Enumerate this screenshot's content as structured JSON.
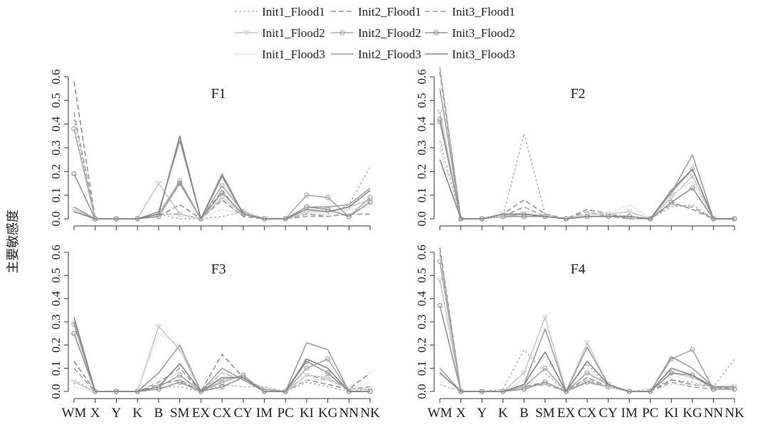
{
  "figure": {
    "ylabel": "主要敏感度"
  },
  "legend": {
    "entries": [
      {
        "name": "Init1_Flood1",
        "color": "#b5b5b5",
        "dash": "3,3",
        "marker": "none"
      },
      {
        "name": "Init2_Flood1",
        "color": "#8f8f8f",
        "dash": "7,4",
        "marker": "none"
      },
      {
        "name": "Init3_Flood1",
        "color": "#a0a0a0",
        "dash": "7,4",
        "marker": "none"
      },
      {
        "name": "Init1_Flood2",
        "color": "#c8c8c8",
        "dash": "",
        "marker": "triangle"
      },
      {
        "name": "Init2_Flood2",
        "color": "#a8a8a8",
        "dash": "",
        "marker": "circle"
      },
      {
        "name": "Init3_Flood2",
        "color": "#959595",
        "dash": "",
        "marker": "circle"
      },
      {
        "name": "Init1_Flood3",
        "color": "#d6d6d6",
        "dash": "2,2",
        "marker": "none"
      },
      {
        "name": "Init2_Flood3",
        "color": "#9e9e9e",
        "dash": "",
        "marker": "none"
      },
      {
        "name": "Init3_Flood3",
        "color": "#858585",
        "dash": "",
        "marker": "none"
      }
    ]
  },
  "chart_data": [
    {
      "type": "line",
      "title": "F1",
      "categories": [
        "WM",
        "X",
        "Y",
        "K",
        "B",
        "SM",
        "EX",
        "CX",
        "CY",
        "IM",
        "PC",
        "KI",
        "KG",
        "NN",
        "NK"
      ],
      "yticks": [
        "0.0",
        "0.1",
        "0.2",
        "0.3",
        "0.4",
        "0.5",
        "0.6"
      ],
      "ylim": [
        0,
        0.6
      ],
      "series": [
        {
          "name": "Init1_Flood1",
          "values": [
            0.42,
            0.0,
            0.0,
            0.0,
            0.02,
            0.0,
            0.0,
            0.01,
            0.03,
            0.0,
            0.0,
            0.02,
            0.02,
            0.06,
            0.22
          ]
        },
        {
          "name": "Init2_Flood1",
          "values": [
            0.58,
            0.0,
            0.0,
            0.0,
            0.01,
            0.06,
            0.0,
            0.08,
            0.01,
            0.0,
            0.0,
            0.02,
            0.01,
            0.02,
            0.02
          ]
        },
        {
          "name": "Init3_Flood1",
          "values": [
            0.45,
            0.0,
            0.0,
            0.0,
            0.02,
            0.02,
            0.0,
            0.12,
            0.01,
            0.0,
            0.0,
            0.01,
            0.01,
            0.02,
            0.02
          ]
        },
        {
          "name": "Init1_Flood2",
          "values": [
            0.04,
            0.0,
            0.0,
            0.0,
            0.15,
            0.02,
            0.0,
            0.09,
            0.02,
            0.0,
            0.0,
            0.03,
            0.03,
            0.05,
            0.08
          ]
        },
        {
          "name": "Init2_Flood2",
          "values": [
            0.38,
            0.0,
            0.0,
            0.0,
            0.02,
            0.16,
            0.0,
            0.14,
            0.03,
            0.0,
            0.0,
            0.1,
            0.09,
            0.01,
            0.09
          ]
        },
        {
          "name": "Init3_Flood2",
          "values": [
            0.19,
            0.0,
            0.0,
            0.0,
            0.01,
            0.15,
            0.0,
            0.11,
            0.02,
            0.0,
            0.0,
            0.05,
            0.04,
            0.01,
            0.07
          ]
        },
        {
          "name": "Init1_Flood3",
          "values": [
            0.03,
            0.0,
            0.0,
            0.0,
            0.03,
            0.01,
            0.0,
            0.04,
            0.02,
            0.01,
            0.0,
            0.02,
            0.02,
            0.04,
            0.05
          ]
        },
        {
          "name": "Init2_Flood3",
          "values": [
            0.05,
            0.0,
            0.0,
            0.0,
            0.03,
            0.33,
            0.0,
            0.19,
            0.02,
            0.0,
            0.0,
            0.05,
            0.05,
            0.06,
            0.13
          ]
        },
        {
          "name": "Init3_Flood3",
          "values": [
            0.03,
            0.0,
            0.0,
            0.0,
            0.02,
            0.35,
            0.0,
            0.18,
            0.02,
            0.0,
            0.0,
            0.04,
            0.03,
            0.05,
            0.12
          ]
        }
      ]
    },
    {
      "type": "line",
      "title": "F2",
      "categories": [
        "WM",
        "X",
        "Y",
        "K",
        "B",
        "SM",
        "EX",
        "CX",
        "CY",
        "IM",
        "PC",
        "KI",
        "KG",
        "NN",
        "NK"
      ],
      "yticks": [
        "0.0",
        "0.1",
        "0.2",
        "0.3",
        "0.4",
        "0.5",
        "0.6"
      ],
      "ylim": [
        0,
        0.6
      ],
      "series": [
        {
          "name": "Init1_Flood1",
          "values": [
            0.33,
            0.0,
            0.0,
            0.01,
            0.36,
            0.02,
            0.0,
            0.02,
            0.02,
            0.01,
            0.0,
            0.05,
            0.06,
            0.0,
            0.0
          ]
        },
        {
          "name": "Init2_Flood1",
          "values": [
            0.62,
            0.0,
            0.0,
            0.02,
            0.08,
            0.02,
            0.0,
            0.04,
            0.02,
            0.0,
            0.0,
            0.07,
            0.04,
            0.0,
            0.0
          ]
        },
        {
          "name": "Init3_Flood1",
          "values": [
            0.64,
            0.0,
            0.0,
            0.01,
            0.05,
            0.01,
            0.0,
            0.03,
            0.01,
            0.0,
            0.0,
            0.06,
            0.05,
            0.0,
            0.0
          ]
        },
        {
          "name": "Init1_Flood2",
          "values": [
            0.45,
            0.0,
            0.0,
            0.02,
            0.02,
            0.01,
            0.0,
            0.02,
            0.02,
            0.03,
            0.0,
            0.09,
            0.18,
            0.0,
            0.0
          ]
        },
        {
          "name": "Init2_Flood2",
          "values": [
            0.41,
            0.0,
            0.0,
            0.01,
            0.02,
            0.01,
            0.0,
            0.01,
            0.01,
            0.01,
            0.0,
            0.11,
            0.21,
            0.0,
            0.0
          ]
        },
        {
          "name": "Init3_Flood2",
          "values": [
            0.42,
            0.0,
            0.0,
            0.01,
            0.01,
            0.01,
            0.0,
            0.01,
            0.01,
            0.01,
            0.0,
            0.07,
            0.13,
            0.0,
            0.0
          ]
        },
        {
          "name": "Init1_Flood3",
          "values": [
            0.3,
            0.0,
            0.0,
            0.01,
            0.03,
            0.01,
            0.0,
            0.02,
            0.02,
            0.06,
            0.0,
            0.1,
            0.16,
            0.0,
            0.0
          ]
        },
        {
          "name": "Init2_Flood3",
          "values": [
            0.55,
            0.0,
            0.0,
            0.02,
            0.02,
            0.01,
            0.0,
            0.01,
            0.01,
            0.01,
            0.0,
            0.11,
            0.27,
            0.0,
            0.0
          ]
        },
        {
          "name": "Init3_Flood3",
          "values": [
            0.25,
            0.0,
            0.0,
            0.02,
            0.02,
            0.01,
            0.0,
            0.01,
            0.01,
            0.01,
            0.0,
            0.12,
            0.21,
            0.0,
            0.0
          ]
        }
      ]
    },
    {
      "type": "line",
      "title": "F3",
      "categories": [
        "WM",
        "X",
        "Y",
        "K",
        "B",
        "SM",
        "EX",
        "CX",
        "CY",
        "IM",
        "PC",
        "KI",
        "KG",
        "NN",
        "NK"
      ],
      "yticks": [
        "0.0",
        "0.1",
        "0.2",
        "0.3",
        "0.4",
        "0.5",
        "0.6"
      ],
      "ylim": [
        0,
        0.6
      ],
      "series": [
        {
          "name": "Init1_Flood1",
          "values": [
            0.05,
            0.0,
            0.0,
            0.0,
            0.02,
            0.02,
            0.0,
            0.03,
            0.02,
            0.02,
            0.0,
            0.04,
            0.02,
            0.0,
            0.01
          ]
        },
        {
          "name": "Init2_Flood1",
          "values": [
            0.13,
            0.0,
            0.0,
            0.0,
            0.03,
            0.05,
            0.0,
            0.16,
            0.06,
            0.01,
            0.0,
            0.05,
            0.03,
            0.01,
            0.08
          ]
        },
        {
          "name": "Init3_Flood1",
          "values": [
            0.1,
            0.0,
            0.0,
            0.0,
            0.04,
            0.1,
            0.0,
            0.08,
            0.05,
            0.01,
            0.0,
            0.07,
            0.05,
            0.01,
            0.02
          ]
        },
        {
          "name": "Init1_Flood2",
          "values": [
            0.04,
            0.0,
            0.0,
            0.0,
            0.28,
            0.18,
            0.0,
            0.05,
            0.07,
            0.0,
            0.0,
            0.07,
            0.06,
            0.01,
            0.01
          ]
        },
        {
          "name": "Init2_Flood2",
          "values": [
            0.29,
            0.0,
            0.0,
            0.0,
            0.02,
            0.07,
            0.0,
            0.04,
            0.07,
            0.0,
            0.0,
            0.1,
            0.14,
            0.0,
            0.0
          ]
        },
        {
          "name": "Init3_Flood2",
          "values": [
            0.25,
            0.0,
            0.0,
            0.0,
            0.01,
            0.04,
            0.0,
            0.02,
            0.06,
            0.0,
            0.0,
            0.13,
            0.08,
            0.0,
            0.0
          ]
        },
        {
          "name": "Init1_Flood3",
          "values": [
            0.02,
            0.0,
            0.0,
            0.0,
            0.25,
            0.2,
            0.0,
            0.08,
            0.05,
            0.02,
            0.0,
            0.05,
            0.05,
            0.01,
            0.04
          ]
        },
        {
          "name": "Init2_Flood3",
          "values": [
            0.3,
            0.0,
            0.0,
            0.0,
            0.08,
            0.2,
            0.0,
            0.1,
            0.05,
            0.0,
            0.0,
            0.21,
            0.18,
            0.0,
            0.0
          ]
        },
        {
          "name": "Init3_Flood3",
          "values": [
            0.32,
            0.0,
            0.0,
            0.0,
            0.02,
            0.12,
            0.0,
            0.06,
            0.06,
            0.0,
            0.0,
            0.14,
            0.1,
            0.0,
            0.0
          ]
        }
      ]
    },
    {
      "type": "line",
      "title": "F4",
      "categories": [
        "WM",
        "X",
        "Y",
        "K",
        "B",
        "SM",
        "EX",
        "CX",
        "CY",
        "IM",
        "PC",
        "KI",
        "KG",
        "NN",
        "NK"
      ],
      "yticks": [
        "0.0",
        "0.1",
        "0.2",
        "0.3",
        "0.4",
        "0.5",
        "0.6"
      ],
      "ylim": [
        0,
        0.6
      ],
      "series": [
        {
          "name": "Init1_Flood1",
          "values": [
            0.03,
            0.0,
            0.0,
            0.01,
            0.18,
            0.08,
            0.0,
            0.12,
            0.02,
            0.0,
            0.01,
            0.05,
            0.04,
            0.02,
            0.14
          ]
        },
        {
          "name": "Init2_Flood1",
          "values": [
            0.62,
            0.0,
            0.0,
            0.0,
            0.02,
            0.04,
            0.0,
            0.06,
            0.02,
            0.0,
            0.0,
            0.05,
            0.03,
            0.02,
            0.01
          ]
        },
        {
          "name": "Init3_Flood1",
          "values": [
            0.6,
            0.0,
            0.0,
            0.0,
            0.02,
            0.03,
            0.0,
            0.05,
            0.02,
            0.0,
            0.0,
            0.04,
            0.02,
            0.01,
            0.01
          ]
        },
        {
          "name": "Init1_Flood2",
          "values": [
            0.48,
            0.0,
            0.0,
            0.0,
            0.08,
            0.32,
            0.0,
            0.21,
            0.03,
            0.0,
            0.0,
            0.08,
            0.06,
            0.02,
            0.02
          ]
        },
        {
          "name": "Init2_Flood2",
          "values": [
            0.56,
            0.0,
            0.0,
            0.0,
            0.02,
            0.1,
            0.0,
            0.08,
            0.03,
            0.0,
            0.0,
            0.14,
            0.18,
            0.01,
            0.01
          ]
        },
        {
          "name": "Init3_Flood2",
          "values": [
            0.37,
            0.0,
            0.0,
            0.0,
            0.01,
            0.04,
            0.0,
            0.04,
            0.02,
            0.0,
            0.0,
            0.08,
            0.07,
            0.01,
            0.01
          ]
        },
        {
          "name": "Init1_Flood3",
          "values": [
            0.03,
            0.0,
            0.0,
            0.0,
            0.05,
            0.15,
            0.0,
            0.05,
            0.02,
            0.0,
            0.0,
            0.03,
            0.03,
            0.02,
            0.03
          ]
        },
        {
          "name": "Init2_Flood3",
          "values": [
            0.1,
            0.0,
            0.0,
            0.0,
            0.03,
            0.27,
            0.0,
            0.19,
            0.03,
            0.0,
            0.0,
            0.15,
            0.1,
            0.02,
            0.02
          ]
        },
        {
          "name": "Init3_Flood3",
          "values": [
            0.08,
            0.0,
            0.0,
            0.0,
            0.03,
            0.17,
            0.0,
            0.13,
            0.03,
            0.0,
            0.0,
            0.1,
            0.07,
            0.02,
            0.02
          ]
        }
      ]
    }
  ]
}
